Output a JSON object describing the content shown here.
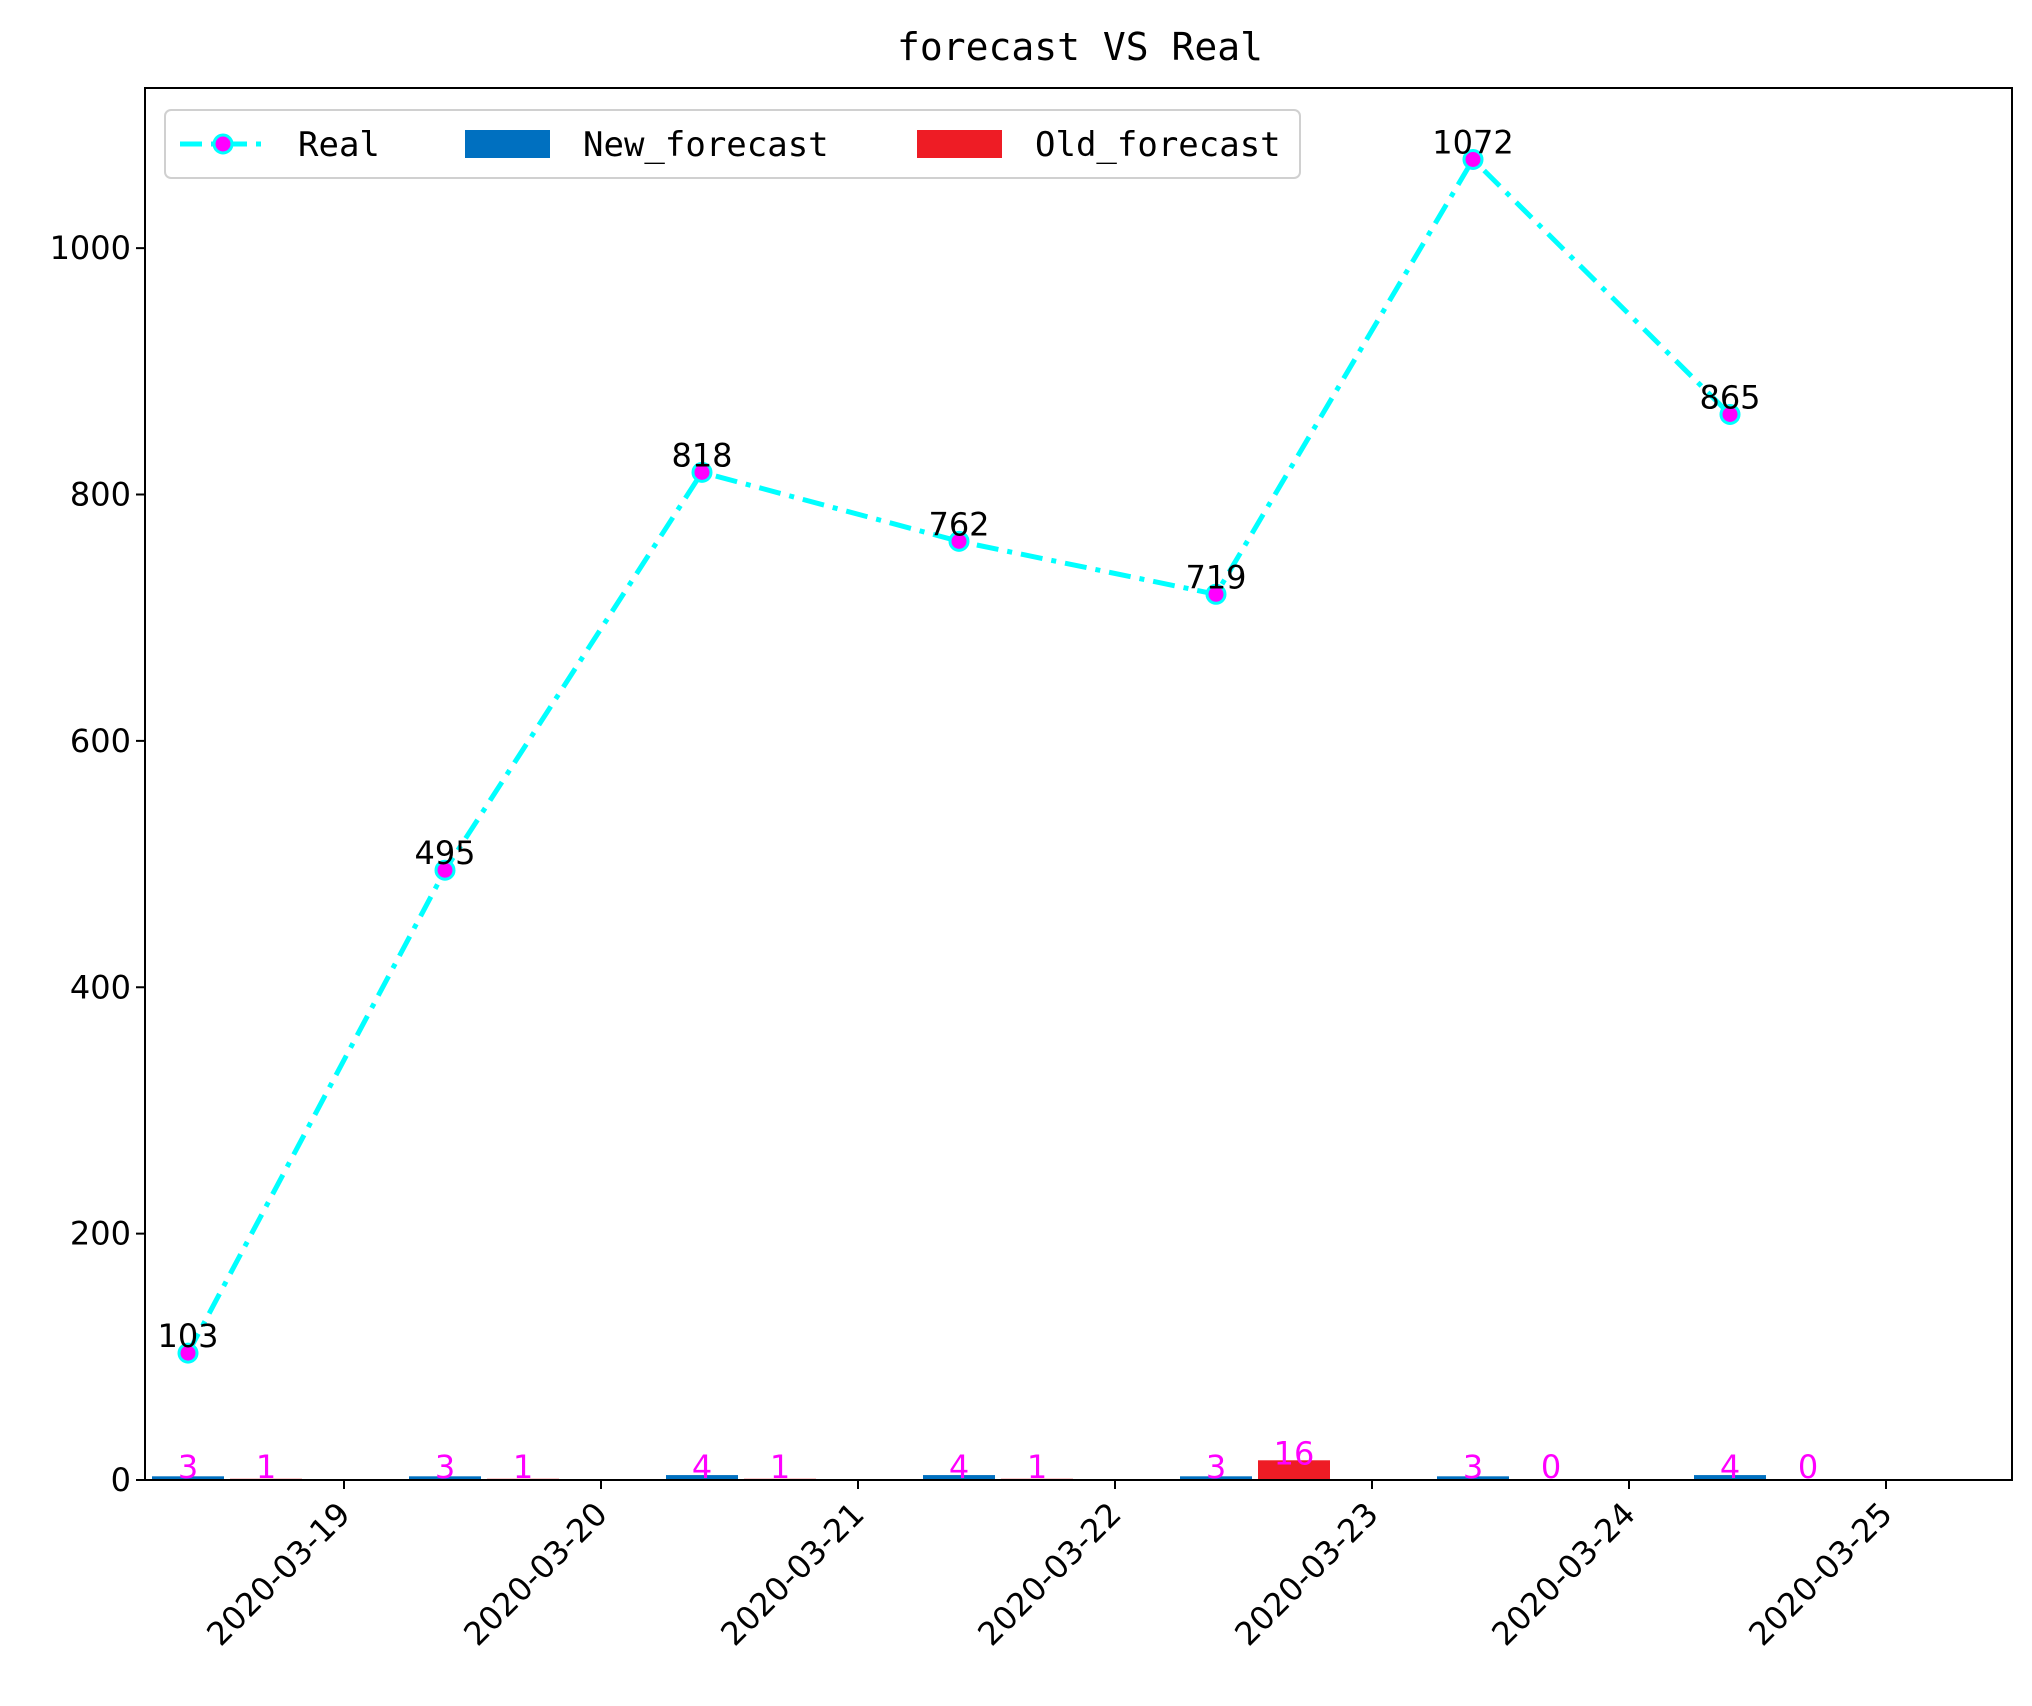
{
  "chart_data": {
    "type": "bar",
    "title": "forecast VS Real",
    "xlabel": "",
    "ylabel": "",
    "ylim": [
      0,
      1130
    ],
    "yticks": [
      0,
      200,
      400,
      600,
      800,
      1000
    ],
    "categories": [
      "2020-03-19",
      "2020-03-20",
      "2020-03-21",
      "2020-03-22",
      "2020-03-23",
      "2020-03-24",
      "2020-03-25"
    ],
    "series": [
      {
        "name": "Real",
        "kind": "line",
        "values": [
          103,
          495,
          818,
          762,
          719,
          1072,
          865
        ],
        "color": "#00ffff",
        "marker_color": "#ff00ff",
        "linestyle": "dashdot"
      },
      {
        "name": "New_forecast",
        "kind": "bar",
        "values": [
          3,
          3,
          4,
          4,
          3,
          3,
          4
        ],
        "color": "#0070c0"
      },
      {
        "name": "Old_forecast",
        "kind": "bar",
        "values": [
          1,
          1,
          1,
          1,
          16,
          0,
          0
        ],
        "color": "#ee1c25"
      }
    ],
    "legend": {
      "placement": "top-left",
      "columns": 3
    },
    "grid": false,
    "bar_label_color": "#ff00ff",
    "line_label_color": "#000000"
  }
}
